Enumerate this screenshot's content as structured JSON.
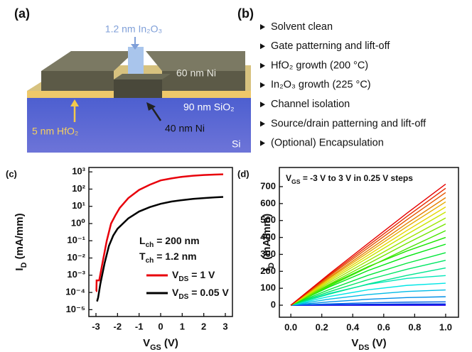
{
  "panel_a": {
    "label": "(a)",
    "channel": "1.2 nm In₂O₃",
    "contacts": "60 nm Ni",
    "oxide": "90 nm SiO₂",
    "dielectric": "5 nm HfO₂",
    "gate": "40 nm Ni",
    "substrate": "Si"
  },
  "panel_b": {
    "label": "(b)",
    "steps": [
      "Solvent clean",
      "Gate patterning and lift-off",
      "HfO₂ growth (200 °C)",
      "In₂O₃ growth (225 °C)",
      "Channel isolation",
      "Source/drain patterning and lift-off",
      "(Optional) Encapsulation"
    ]
  },
  "chart_data": [
    {
      "type": "line",
      "panel_label": "(c)",
      "xlabel": [
        "V",
        "GS",
        " (V)"
      ],
      "ylabel": [
        "I",
        "D",
        " (mA/mm)"
      ],
      "yscale": "log",
      "xlim": [
        -3.33,
        3.33
      ],
      "xticks": [
        -3,
        -2,
        -1,
        0,
        1,
        2,
        3
      ],
      "ylim": [
        4e-06,
        1800
      ],
      "yticks": [
        {
          "value": 1e-05,
          "label": "10⁻⁵"
        },
        {
          "value": 0.0001,
          "label": "10⁻⁴"
        },
        {
          "value": 0.001,
          "label": "10⁻³"
        },
        {
          "value": 0.01,
          "label": "10⁻²"
        },
        {
          "value": 0.1,
          "label": "10⁻¹"
        },
        {
          "value": 1,
          "label": "10⁰"
        },
        {
          "value": 10,
          "label": "10¹"
        },
        {
          "value": 100,
          "label": "10²"
        },
        {
          "value": 1000,
          "label": "10³"
        }
      ],
      "annotations": [
        [
          "L",
          "ch",
          " = 200 nm"
        ],
        [
          "T",
          "ch",
          " = 1.2 nm"
        ]
      ],
      "legend": "lower right",
      "series": [
        {
          "name": [
            "V",
            "DS",
            " = 1 V"
          ],
          "color": "#e8000b",
          "x": [
            -3,
            -2.98,
            -2.97,
            -2.85,
            -2.7,
            -2.5,
            -2.3,
            -2.1,
            -1.9,
            -1.5,
            -1,
            -0.5,
            0,
            0.5,
            1,
            1.5,
            2,
            2.5,
            2.9
          ],
          "values": [
            0.00012,
            0.00012,
            0.0005,
            0.0005,
            0.005,
            0.1,
            1,
            3,
            8,
            30,
            90,
            180,
            320,
            420,
            520,
            600,
            660,
            700,
            720
          ]
        },
        {
          "name": [
            "V",
            "DS",
            " = 0.05 V"
          ],
          "color": "#000000",
          "x": [
            -2.95,
            -2.9,
            -2.8,
            -2.6,
            -2.4,
            -2.2,
            -2,
            -1.5,
            -1,
            -0.5,
            0,
            0.5,
            1,
            1.5,
            2,
            2.5,
            2.9
          ],
          "values": [
            3e-05,
            5e-05,
            0.0003,
            0.005,
            0.05,
            0.2,
            0.5,
            2,
            5,
            9,
            14,
            19,
            23,
            27,
            30,
            33,
            35
          ]
        }
      ]
    },
    {
      "type": "line",
      "panel_label": "(d)",
      "xlabel": [
        "V",
        "DS",
        " (V)"
      ],
      "ylabel": [
        "I",
        "D",
        " (mA/mm)"
      ],
      "annotations": [
        [
          "V",
          "GS",
          " = -3 V to 3 V in 0.25 V steps"
        ]
      ],
      "xlim": [
        -0.074,
        1.083
      ],
      "xticks": [
        {
          "value": 0,
          "label": "0.0"
        },
        0.2,
        0.4,
        0.6,
        0.8,
        {
          "value": 1,
          "label": "1.0"
        }
      ],
      "ylim": [
        -71,
        813
      ],
      "yticks": [
        0,
        100,
        200,
        300,
        400,
        500,
        600,
        700
      ],
      "x": [
        0,
        0.25,
        0.5,
        0.75,
        1
      ],
      "series": [
        {
          "color": "#7300e6",
          "values": [
            0,
            0,
            0,
            0,
            0
          ]
        },
        {
          "color": "#4800e6",
          "values": [
            0,
            0,
            0,
            0,
            0
          ]
        },
        {
          "color": "#1d00e6",
          "values": [
            0,
            0.4,
            0.7,
            0.9,
            1
          ]
        },
        {
          "color": "#000ee6",
          "values": [
            0,
            1.2,
            2.1,
            2.7,
            3
          ]
        },
        {
          "color": "#0039e6",
          "values": [
            0,
            3.2,
            5.6,
            7.2,
            8
          ]
        },
        {
          "color": "#0064e6",
          "values": [
            0,
            8,
            14,
            18,
            20
          ]
        },
        {
          "color": "#008fe6",
          "values": [
            0,
            20,
            35,
            45,
            50
          ]
        },
        {
          "color": "#00bae6",
          "values": [
            0,
            36,
            63,
            81,
            90
          ]
        },
        {
          "color": "#00e6e6",
          "values": [
            0,
            52,
            91,
            117,
            130
          ]
        },
        {
          "color": "#00e6ba",
          "values": [
            0,
            70,
            123,
            158,
            175
          ]
        },
        {
          "color": "#00e68f",
          "values": [
            0,
            66,
            125,
            176,
            220
          ]
        },
        {
          "color": "#00e664",
          "values": [
            0,
            80,
            151,
            212,
            265
          ]
        },
        {
          "color": "#00e639",
          "values": [
            0,
            93,
            177,
            248,
            310
          ]
        },
        {
          "color": "#00e60e",
          "values": [
            0,
            108,
            205,
            288,
            360
          ]
        },
        {
          "color": "#1de600",
          "values": [
            0,
            120,
            228,
            320,
            400
          ]
        },
        {
          "color": "#48e600",
          "values": [
            0,
            114,
            224,
            334,
            440
          ]
        },
        {
          "color": "#73e600",
          "values": [
            0,
            125,
            245,
            365,
            480
          ]
        },
        {
          "color": "#9ee600",
          "values": [
            0,
            134,
            263,
            391,
            515
          ]
        },
        {
          "color": "#c9e600",
          "values": [
            0,
            143,
            281,
            418,
            550
          ]
        },
        {
          "color": "#e6d700",
          "values": [
            0,
            151,
            296,
            441,
            580
          ]
        },
        {
          "color": "#e6ac00",
          "values": [
            0,
            159,
            311,
            464,
            610
          ]
        },
        {
          "color": "#e68100",
          "values": [
            0,
            165,
            324,
            483,
            635
          ]
        },
        {
          "color": "#e65600",
          "values": [
            0,
            173,
            339,
            505,
            665
          ]
        },
        {
          "color": "#e62b00",
          "values": [
            0,
            179,
            352,
            524,
            690
          ]
        },
        {
          "color": "#e60000",
          "values": [
            0,
            186,
            365,
            543,
            715
          ]
        }
      ]
    }
  ]
}
